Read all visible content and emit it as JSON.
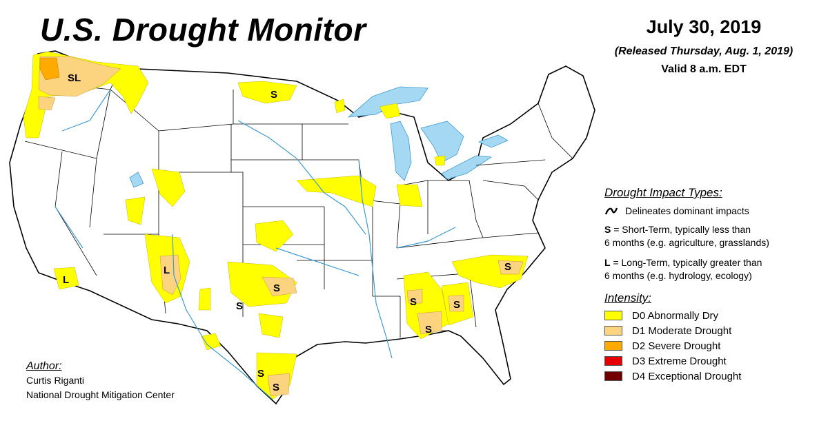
{
  "title": "U.S. Drought Monitor",
  "date": {
    "main": "July 30, 2019",
    "released": "(Released Thursday, Aug. 1, 2019)",
    "valid": "Valid 8 a.m. EDT"
  },
  "impact_types": {
    "heading": "Drought Impact Types:",
    "delineates": "Delineates dominant impacts",
    "short_letter": "S",
    "short_line1": " = Short-Term, typically less than",
    "short_line2": "6 months (e.g. agriculture, grasslands)",
    "long_letter": "L",
    "long_line1": " = Long-Term, typically greater than",
    "long_line2": "6 months (e.g. hydrology, ecology)"
  },
  "intensity": {
    "heading": "Intensity:",
    "items": [
      {
        "label": "D0 Abnormally Dry",
        "color": "#ffff00"
      },
      {
        "label": "D1 Moderate Drought",
        "color": "#fcd37f"
      },
      {
        "label": "D2 Severe Drought",
        "color": "#ffaa00"
      },
      {
        "label": "D3 Extreme Drought",
        "color": "#e60000"
      },
      {
        "label": "D4 Exceptional Drought",
        "color": "#730000"
      }
    ]
  },
  "author": {
    "heading": "Author:",
    "name": "Curtis Riganti",
    "org": "National Drought Mitigation Center"
  },
  "map_labels": {
    "wa_sl": "SL",
    "nd_s": "S",
    "nm_l": "L",
    "ca_l": "L",
    "ok_s": "S",
    "tx_w_s": "S",
    "tx_s1": "S",
    "tx_s2": "S",
    "al_s": "S",
    "ga_s": "S",
    "fl_s": "S",
    "nc_s": "S"
  },
  "colors": {
    "water": "#a5d8f3",
    "river": "#3d9bd6",
    "border": "#000000"
  }
}
